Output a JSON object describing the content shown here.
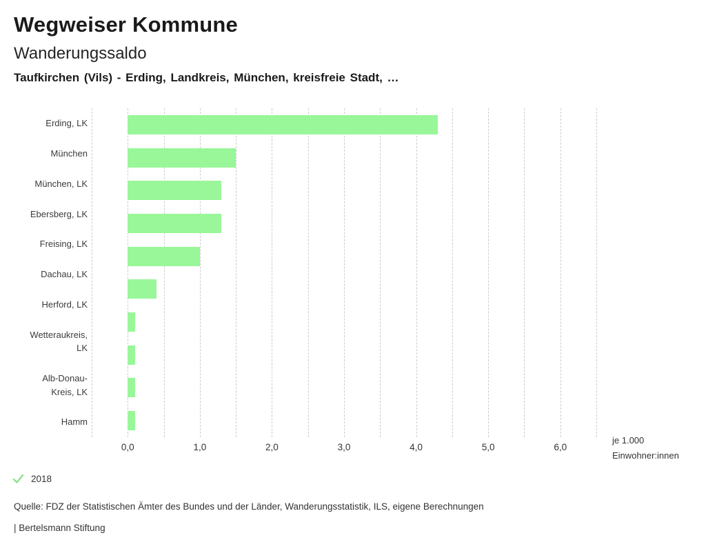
{
  "header": {
    "title": "Wegweiser Kommune",
    "subtitle": "Wanderungssaldo",
    "context": "Taufkirchen (Vils) - Erding, Landkreis, München, kreisfreie Stadt, …"
  },
  "chart_data": {
    "type": "bar",
    "orientation": "horizontal",
    "title": "Wanderungssaldo",
    "categories": [
      "Erding, LK",
      "München",
      "München, LK",
      "Ebersberg, LK",
      "Freising, LK",
      "Dachau, LK",
      "Herford, LK",
      "Wetteraukreis, LK",
      "Alb-Donau-Kreis, LK",
      "Hamm"
    ],
    "values": [
      4.3,
      1.5,
      1.3,
      1.3,
      1.0,
      0.4,
      0.1,
      0.1,
      0.1,
      0.1
    ],
    "xlabel": "je 1.000 Einwohner:innen",
    "unit_lines": [
      "je 1.000",
      "Einwohner:innen"
    ],
    "x_tick_values": [
      0,
      1,
      2,
      3,
      4,
      5,
      6
    ],
    "x_tick_labels": [
      "0,0",
      "1,0",
      "2,0",
      "3,0",
      "4,0",
      "5,0",
      "6,0"
    ],
    "xlim": [
      -0.5,
      6.5
    ],
    "grid_step": 0.5,
    "grid": "vertical-dashed",
    "legend_position": "bottom-left",
    "bar_color": "#99f699",
    "gridline_color": "#cbcbcb"
  },
  "legend": {
    "year": "2018",
    "check_icon": "checkmark",
    "check_color": "#8fe08f"
  },
  "footer": {
    "source": "Quelle: FDZ der Statistischen Ämter des Bundes und der Länder, Wanderungsstatistik, ILS, eigene Berechnungen",
    "brand": "| Bertelsmann Stiftung"
  }
}
